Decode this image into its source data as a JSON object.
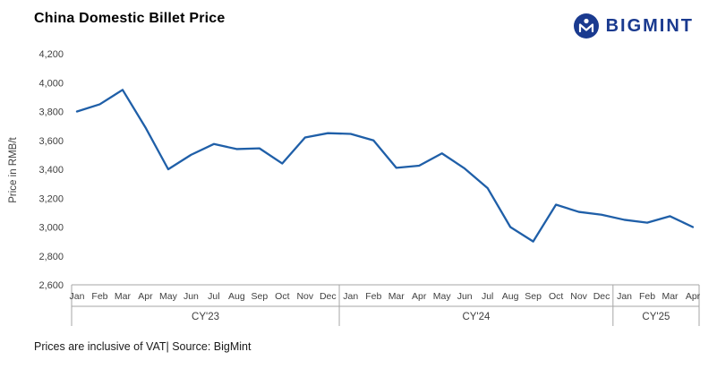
{
  "header": {
    "title": "China Domestic Billet Price",
    "logo_text": "BIGMINT"
  },
  "footer": {
    "note": "Prices are inclusive of VAT| Source: BigMint"
  },
  "chart_data": {
    "type": "line",
    "title": "China Domestic Billet Price",
    "xlabel": "",
    "ylabel": "Price in RMB/t",
    "ylim": [
      2600,
      4200
    ],
    "yticks": [
      2600,
      2800,
      3000,
      3200,
      3400,
      3600,
      3800,
      4000,
      4200
    ],
    "grid": false,
    "legend_position": "none",
    "line_color": "#1f5fa8",
    "axis_line_color": "#a6a6a6",
    "groups": [
      {
        "label": "CY'23",
        "months": [
          "Jan",
          "Feb",
          "Mar",
          "Apr",
          "May",
          "Jun",
          "Jul",
          "Aug",
          "Sep",
          "Oct",
          "Nov",
          "Dec"
        ]
      },
      {
        "label": "CY'24",
        "months": [
          "Jan",
          "Feb",
          "Mar",
          "Apr",
          "May",
          "Jun",
          "Jul",
          "Aug",
          "Sep",
          "Oct",
          "Nov",
          "Dec"
        ]
      },
      {
        "label": "CY'25",
        "months": [
          "Jan",
          "Feb",
          "Mar",
          "Apr"
        ]
      }
    ],
    "values": [
      3800,
      3850,
      3950,
      3690,
      3400,
      3500,
      3575,
      3540,
      3545,
      3440,
      3620,
      3650,
      3645,
      3600,
      3410,
      3425,
      3510,
      3405,
      3270,
      3000,
      2900,
      3155,
      3105,
      3085,
      3050,
      3030,
      3075,
      3000
    ]
  }
}
